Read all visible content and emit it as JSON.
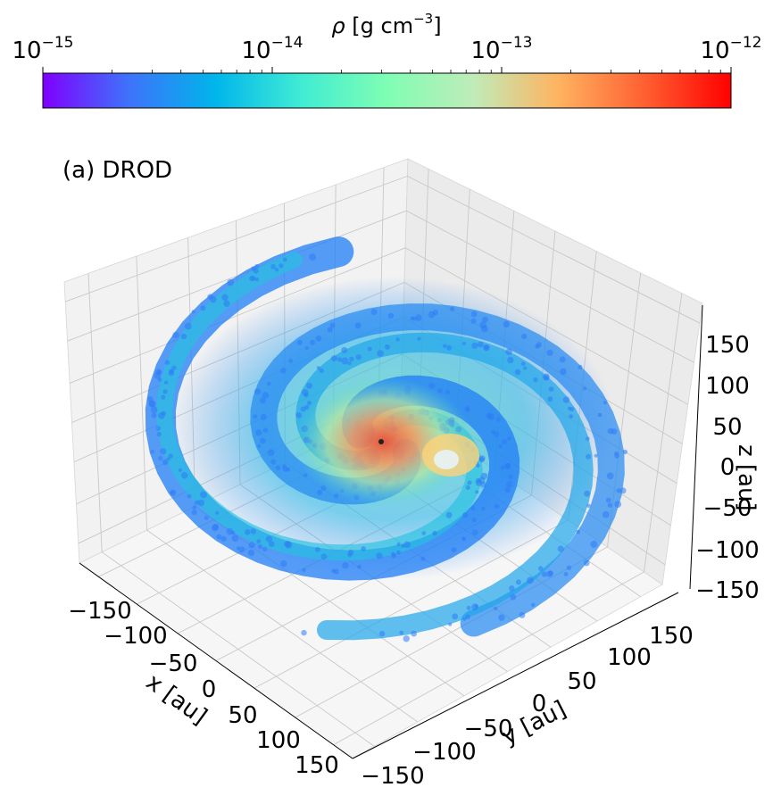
{
  "panel_label": "(a) DROD",
  "chart_data": {
    "type": "scatter",
    "projection": "3d",
    "colorbar": {
      "label_sym": "ρ",
      "label_unit": "[g cm",
      "label_exp": "−3",
      "label_close": "]",
      "scale": "log",
      "colormap": "rainbow",
      "range": [
        1e-15,
        1e-12
      ],
      "orientation": "horizontal",
      "position": "top",
      "ticks": [
        {
          "base": "10",
          "exp": "−15",
          "value": 1e-15
        },
        {
          "base": "10",
          "exp": "−14",
          "value": 1e-14
        },
        {
          "base": "10",
          "exp": "−13",
          "value": 1e-13
        },
        {
          "base": "10",
          "exp": "−12",
          "value": 1e-12
        }
      ],
      "colors": [
        "#7f00ff",
        "#3e73fb",
        "#00b5eb",
        "#40ecd4",
        "#7ffeb3",
        "#bfecb9",
        "#ffb360",
        "#ff5f31",
        "#ff0000"
      ]
    },
    "axes": {
      "x": {
        "label": "x [au]",
        "ticks": [
          "−150",
          "−100",
          "−50",
          "0",
          "50",
          "100",
          "150"
        ],
        "range": [
          -175,
          175
        ]
      },
      "y": {
        "label": "y [au]",
        "ticks": [
          "−150",
          "−100",
          "−50",
          "0",
          "50",
          "100",
          "150"
        ],
        "range": [
          -175,
          175
        ]
      },
      "z": {
        "label": "z [au]",
        "ticks": [
          "150",
          "100",
          "50",
          "0",
          "−50",
          "−100",
          "−150"
        ],
        "range": [
          -175,
          175
        ]
      }
    },
    "grid": true,
    "structure": "spiral arms",
    "point_color": "#2e7bf6",
    "center_color": "#ff6f45"
  }
}
